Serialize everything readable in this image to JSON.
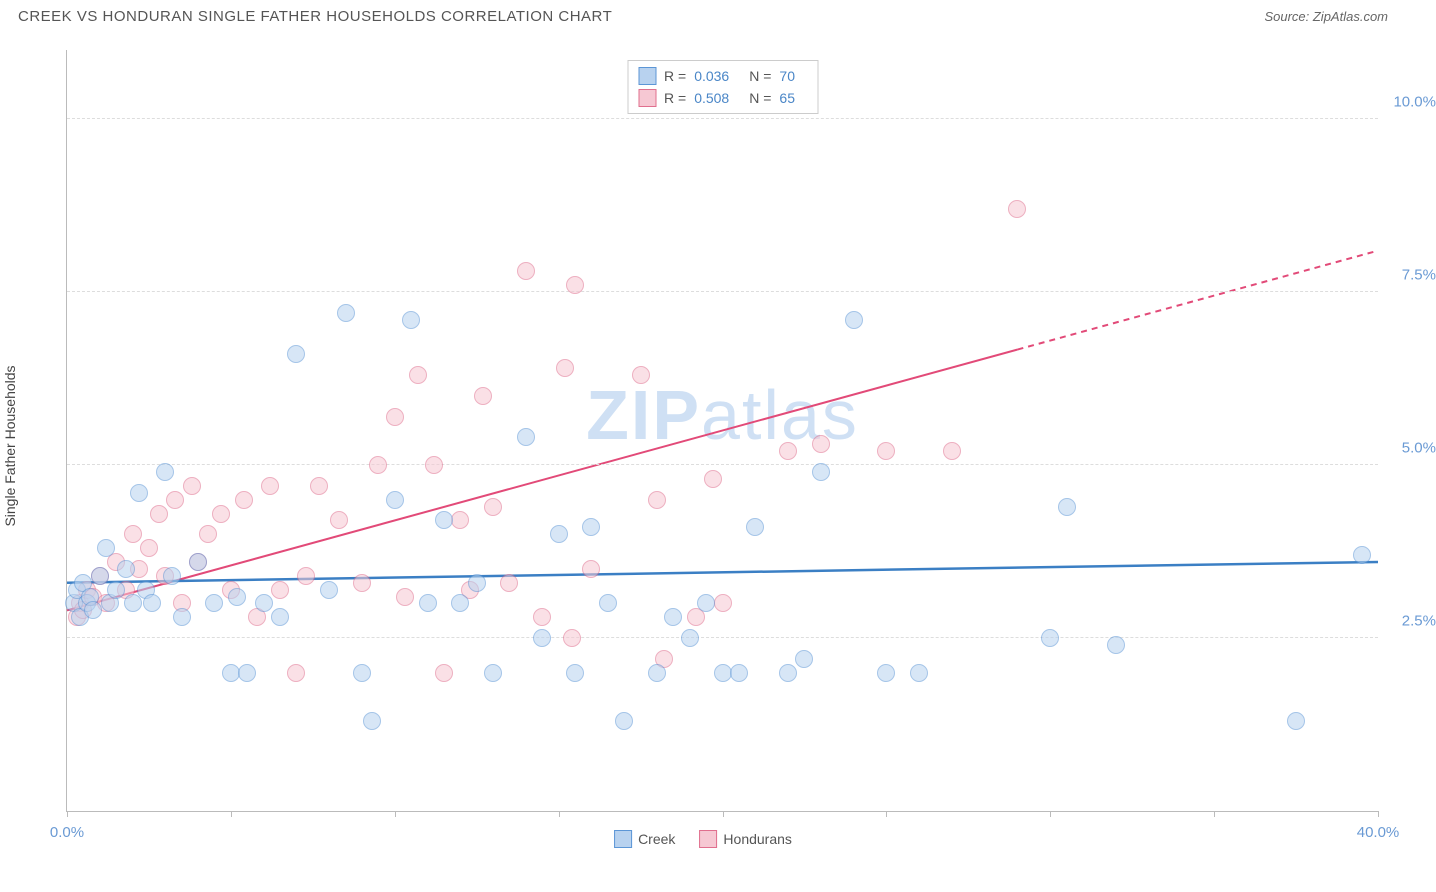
{
  "header": {
    "title": "CREEK VS HONDURAN SINGLE FATHER HOUSEHOLDS CORRELATION CHART",
    "source": "Source: ZipAtlas.com"
  },
  "watermark": {
    "label_prefix": "ZIP",
    "label_suffix": "atlas"
  },
  "chart": {
    "type": "scatter",
    "background_color": "#ffffff",
    "grid_color": "#dddddd",
    "axis_color": "#bbbbbb",
    "xlim": [
      0,
      40
    ],
    "ylim": [
      0,
      11
    ],
    "x_ticks": [
      0,
      5,
      10,
      15,
      20,
      25,
      30,
      35,
      40
    ],
    "y_gridlines": [
      2.5,
      5.0,
      7.5,
      10.0
    ],
    "y_tick_labels": [
      "2.5%",
      "5.0%",
      "7.5%",
      "10.0%"
    ],
    "x_tick_labels_shown": {
      "0": "0.0%",
      "40": "40.0%"
    },
    "ylabel": "Single Father Households",
    "label_fontsize": 14,
    "tick_label_color": "#6a9ad4",
    "tick_fontsize": 15,
    "point_radius": 9,
    "point_opacity": 0.55,
    "series": {
      "creek": {
        "label": "Creek",
        "fill": "#b8d2ef",
        "stroke": "#5c96d6",
        "trend_color": "#3b7fc4",
        "r_value": "0.036",
        "n_value": "70",
        "trend": {
          "y_at_x0": 3.3,
          "y_at_x40": 3.6,
          "width": 2.5,
          "dashed_from_x": null
        },
        "points": [
          [
            0.2,
            3.0
          ],
          [
            0.3,
            3.2
          ],
          [
            0.4,
            2.8
          ],
          [
            0.5,
            3.3
          ],
          [
            0.6,
            3.0
          ],
          [
            0.7,
            3.1
          ],
          [
            0.8,
            2.9
          ],
          [
            1.0,
            3.4
          ],
          [
            1.2,
            3.8
          ],
          [
            1.3,
            3.0
          ],
          [
            1.5,
            3.2
          ],
          [
            1.8,
            3.5
          ],
          [
            2.0,
            3.0
          ],
          [
            2.2,
            4.6
          ],
          [
            2.4,
            3.2
          ],
          [
            2.6,
            3.0
          ],
          [
            3.0,
            4.9
          ],
          [
            3.2,
            3.4
          ],
          [
            3.5,
            2.8
          ],
          [
            4.0,
            3.6
          ],
          [
            4.5,
            3.0
          ],
          [
            5.0,
            2.0
          ],
          [
            5.2,
            3.1
          ],
          [
            5.5,
            2.0
          ],
          [
            6.0,
            3.0
          ],
          [
            6.5,
            2.8
          ],
          [
            7.0,
            6.6
          ],
          [
            8.0,
            3.2
          ],
          [
            8.5,
            7.2
          ],
          [
            9.0,
            2.0
          ],
          [
            9.3,
            1.3
          ],
          [
            10.0,
            4.5
          ],
          [
            10.5,
            7.1
          ],
          [
            11.0,
            3.0
          ],
          [
            11.5,
            4.2
          ],
          [
            12.0,
            3.0
          ],
          [
            12.5,
            3.3
          ],
          [
            13.0,
            2.0
          ],
          [
            14.0,
            5.4
          ],
          [
            14.5,
            2.5
          ],
          [
            15.0,
            4.0
          ],
          [
            15.5,
            2.0
          ],
          [
            16.0,
            4.1
          ],
          [
            16.5,
            3.0
          ],
          [
            17.0,
            1.3
          ],
          [
            18.0,
            2.0
          ],
          [
            18.5,
            2.8
          ],
          [
            19.0,
            2.5
          ],
          [
            19.5,
            3.0
          ],
          [
            20.0,
            2.0
          ],
          [
            20.5,
            2.0
          ],
          [
            21.0,
            4.1
          ],
          [
            22.0,
            2.0
          ],
          [
            22.5,
            2.2
          ],
          [
            23.0,
            4.9
          ],
          [
            24.0,
            7.1
          ],
          [
            25.0,
            2.0
          ],
          [
            26.0,
            2.0
          ],
          [
            30.0,
            2.5
          ],
          [
            30.5,
            4.4
          ],
          [
            32.0,
            2.4
          ],
          [
            37.5,
            1.3
          ],
          [
            39.5,
            3.7
          ]
        ]
      },
      "hondurans": {
        "label": "Hondurans",
        "fill": "#f6c8d3",
        "stroke": "#e06f8e",
        "trend_color": "#e24a78",
        "r_value": "0.508",
        "n_value": "65",
        "trend": {
          "y_at_x0": 2.9,
          "y_at_x40": 8.1,
          "width": 2,
          "dashed_from_x": 29
        },
        "points": [
          [
            0.3,
            2.8
          ],
          [
            0.4,
            3.0
          ],
          [
            0.5,
            2.9
          ],
          [
            0.6,
            3.2
          ],
          [
            0.8,
            3.1
          ],
          [
            1.0,
            3.4
          ],
          [
            1.2,
            3.0
          ],
          [
            1.5,
            3.6
          ],
          [
            1.8,
            3.2
          ],
          [
            2.0,
            4.0
          ],
          [
            2.2,
            3.5
          ],
          [
            2.5,
            3.8
          ],
          [
            2.8,
            4.3
          ],
          [
            3.0,
            3.4
          ],
          [
            3.3,
            4.5
          ],
          [
            3.5,
            3.0
          ],
          [
            3.8,
            4.7
          ],
          [
            4.0,
            3.6
          ],
          [
            4.3,
            4.0
          ],
          [
            4.7,
            4.3
          ],
          [
            5.0,
            3.2
          ],
          [
            5.4,
            4.5
          ],
          [
            5.8,
            2.8
          ],
          [
            6.2,
            4.7
          ],
          [
            6.5,
            3.2
          ],
          [
            7.0,
            2.0
          ],
          [
            7.3,
            3.4
          ],
          [
            7.7,
            4.7
          ],
          [
            8.3,
            4.2
          ],
          [
            9.0,
            3.3
          ],
          [
            9.5,
            5.0
          ],
          [
            10.0,
            5.7
          ],
          [
            10.3,
            3.1
          ],
          [
            10.7,
            6.3
          ],
          [
            11.2,
            5.0
          ],
          [
            11.5,
            2.0
          ],
          [
            12.0,
            4.2
          ],
          [
            12.3,
            3.2
          ],
          [
            12.7,
            6.0
          ],
          [
            13.0,
            4.4
          ],
          [
            13.5,
            3.3
          ],
          [
            14.0,
            7.8
          ],
          [
            14.5,
            2.8
          ],
          [
            15.2,
            6.4
          ],
          [
            15.4,
            2.5
          ],
          [
            15.5,
            7.6
          ],
          [
            16.0,
            3.5
          ],
          [
            17.5,
            6.3
          ],
          [
            18.0,
            4.5
          ],
          [
            18.2,
            2.2
          ],
          [
            19.2,
            2.8
          ],
          [
            19.7,
            4.8
          ],
          [
            20.0,
            3.0
          ],
          [
            22.0,
            5.2
          ],
          [
            23.0,
            5.3
          ],
          [
            25.0,
            5.2
          ],
          [
            27.0,
            5.2
          ],
          [
            29.0,
            8.7
          ]
        ]
      }
    },
    "legend_top": {
      "r_label": "R =",
      "n_label": "N =",
      "swatch_border_width": 1
    },
    "legend_bottom": {
      "items": [
        "creek",
        "hondurans"
      ]
    }
  }
}
